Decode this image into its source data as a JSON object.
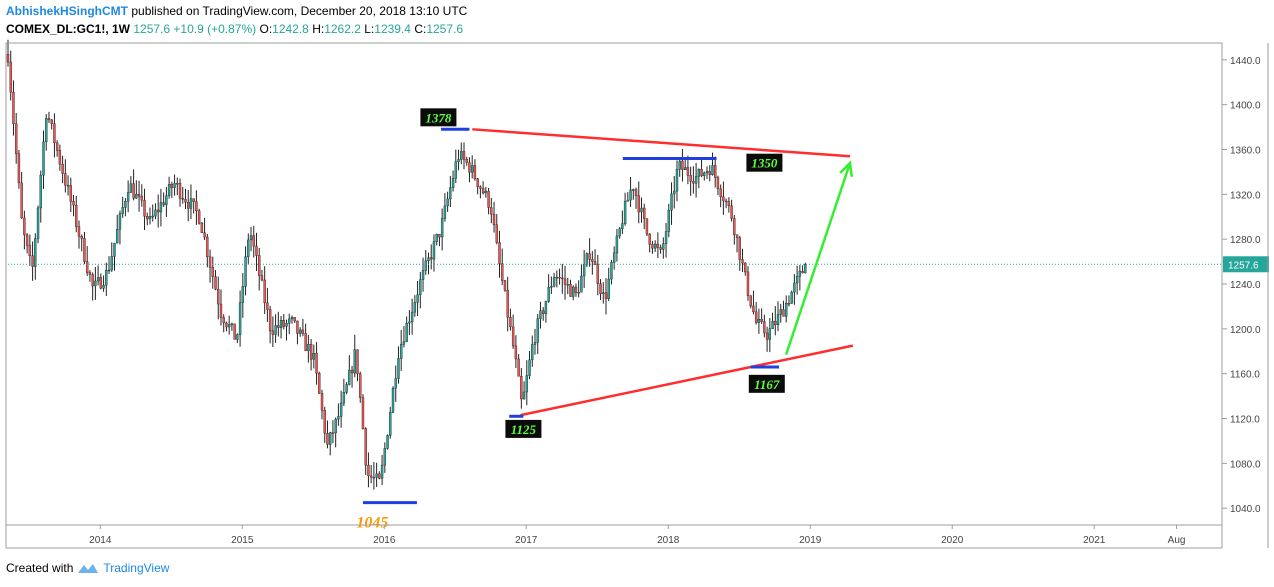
{
  "header": {
    "author": "AbhishekHSinghCMT",
    "published_text": "published on TradingView.com, December 20, 2018 13:10 UTC",
    "symbol": "COMEX_DL:GC1!, 1W",
    "last": "1257.6",
    "change": "+10.9 (+0.87%)",
    "o_label": "O:",
    "o_value": "1242.8",
    "h_label": "H:",
    "h_value": "1262.2",
    "l_label": "L:",
    "l_value": "1239.4",
    "c_label": "C:",
    "c_value": "1257.6"
  },
  "footer": {
    "created_with": "Created with",
    "brand": "TradingView"
  },
  "colors": {
    "up": "#26a69a",
    "down": "#ef5350",
    "trend": "#ff2d2d",
    "level": "#1f3fe0",
    "arrow": "#33ee33",
    "price_tag": "#26a69a"
  },
  "chart_data": {
    "type": "candlestick",
    "ylim": [
      1025,
      1455
    ],
    "yticks": [
      1040,
      1080,
      1120,
      1160,
      1200,
      1240,
      1280,
      1320,
      1360,
      1400,
      1440
    ],
    "xlim": [
      2013.35,
      2021.9
    ],
    "xticks": [
      {
        "label": "2014",
        "x": 2014.0
      },
      {
        "label": "2015",
        "x": 2015.0
      },
      {
        "label": "2016",
        "x": 2016.0
      },
      {
        "label": "2017",
        "x": 2017.0
      },
      {
        "label": "2018",
        "x": 2018.0
      },
      {
        "label": "2019",
        "x": 2019.0
      },
      {
        "label": "2020",
        "x": 2020.0
      },
      {
        "label": "2021",
        "x": 2021.0
      },
      {
        "label": "Aug",
        "x": 2021.58
      }
    ],
    "last_price": "1257.6",
    "last_price_value": 1257.6,
    "series_anchors": [
      [
        2013.35,
        1445
      ],
      [
        2013.45,
        1290
      ],
      [
        2013.52,
        1250
      ],
      [
        2013.62,
        1395
      ],
      [
        2013.8,
        1310
      ],
      [
        2013.95,
        1235
      ],
      [
        2014.05,
        1250
      ],
      [
        2014.2,
        1330
      ],
      [
        2014.35,
        1295
      ],
      [
        2014.52,
        1330
      ],
      [
        2014.7,
        1300
      ],
      [
        2014.85,
        1215
      ],
      [
        2014.96,
        1190
      ],
      [
        2015.05,
        1290
      ],
      [
        2015.2,
        1200
      ],
      [
        2015.35,
        1205
      ],
      [
        2015.5,
        1175
      ],
      [
        2015.6,
        1095
      ],
      [
        2015.7,
        1130
      ],
      [
        2015.8,
        1180
      ],
      [
        2015.88,
        1070
      ],
      [
        2015.97,
        1062
      ],
      [
        2016.1,
        1180
      ],
      [
        2016.25,
        1240
      ],
      [
        2016.4,
        1290
      ],
      [
        2016.52,
        1355
      ],
      [
        2016.6,
        1345
      ],
      [
        2016.75,
        1310
      ],
      [
        2016.8,
        1265
      ],
      [
        2016.92,
        1175
      ],
      [
        2016.97,
        1130
      ],
      [
        2017.05,
        1190
      ],
      [
        2017.2,
        1250
      ],
      [
        2017.35,
        1230
      ],
      [
        2017.45,
        1270
      ],
      [
        2017.55,
        1225
      ],
      [
        2017.68,
        1300
      ],
      [
        2017.75,
        1330
      ],
      [
        2017.85,
        1285
      ],
      [
        2017.95,
        1265
      ],
      [
        2018.07,
        1345
      ],
      [
        2018.2,
        1335
      ],
      [
        2018.3,
        1345
      ],
      [
        2018.45,
        1300
      ],
      [
        2018.55,
        1240
      ],
      [
        2018.62,
        1205
      ],
      [
        2018.7,
        1195
      ],
      [
        2018.8,
        1215
      ],
      [
        2018.88,
        1235
      ],
      [
        2018.97,
        1257.6
      ]
    ],
    "annotations": [
      {
        "label": "1378",
        "x": 2016.48,
        "y": 1378
      },
      {
        "label": "1350",
        "x": 2018.48,
        "y": 1350
      },
      {
        "label": "1125",
        "x": 2016.98,
        "y": 1125
      },
      {
        "label": "1167",
        "x": 2018.68,
        "y": 1167
      },
      {
        "label": "1045",
        "x": 2015.93,
        "y": 1045
      }
    ],
    "levels": [
      {
        "y": 1378,
        "x1": 2016.4,
        "x2": 2016.6
      },
      {
        "y": 1352,
        "x1": 2017.68,
        "x2": 2018.34
      },
      {
        "y": 1122,
        "x1": 2016.88,
        "x2": 2016.98
      },
      {
        "y": 1166,
        "x1": 2018.58,
        "x2": 2018.78
      },
      {
        "y": 1045,
        "x1": 2015.85,
        "x2": 2016.23
      }
    ],
    "trendlines": [
      {
        "x1": 2016.62,
        "y1": 1378,
        "x2": 2019.28,
        "y2": 1354
      },
      {
        "x1": 2016.96,
        "y1": 1123,
        "x2": 2019.3,
        "y2": 1185
      }
    ],
    "arrow": {
      "x1": 2018.83,
      "y1": 1177,
      "x2": 2019.28,
      "y2": 1348
    }
  }
}
